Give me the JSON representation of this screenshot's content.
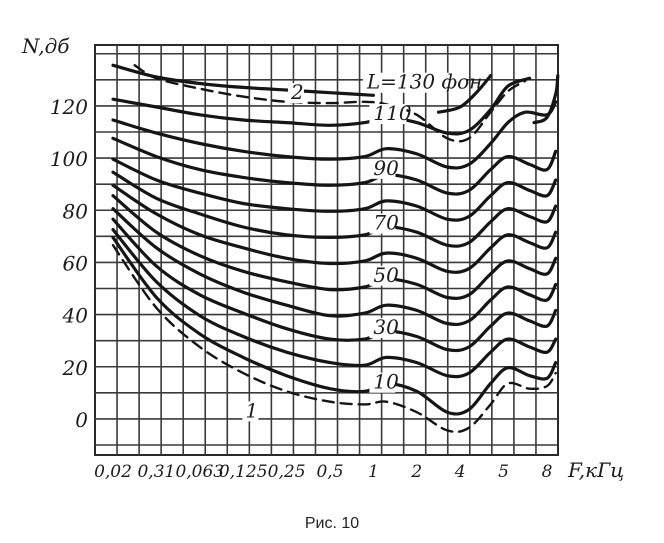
{
  "chart_data": {
    "type": "line",
    "ylabel": "N,дб",
    "xlabel": "F,кГц",
    "x_ticks": [
      "0,02",
      "0,31",
      "0,063",
      "0,125",
      "0,25",
      "0,5",
      "1",
      "2",
      "4",
      "5",
      "8"
    ],
    "y_ticks": [
      "0",
      "20",
      "40",
      "60",
      "80",
      "100",
      "120"
    ],
    "ylim": [
      -10,
      140
    ],
    "grid": true,
    "x_index_range": [
      0,
      10
    ],
    "series": [
      {
        "label": "L=130 фон",
        "points": [
          [
            0,
            136
          ],
          [
            1,
            131.5
          ],
          [
            2,
            129
          ],
          [
            3,
            127.5
          ],
          [
            4,
            126.5
          ],
          [
            5,
            125.5
          ],
          [
            6,
            124.5
          ]
        ]
      },
      {
        "label": "110",
        "points": [
          [
            0,
            123
          ],
          [
            1,
            120
          ],
          [
            2,
            117
          ],
          [
            3,
            115
          ],
          [
            4,
            114
          ],
          [
            5,
            113
          ],
          [
            5.8,
            114
          ],
          [
            6.3,
            116
          ],
          [
            7,
            114
          ],
          [
            7.7,
            110
          ],
          [
            8.2,
            111
          ],
          [
            8.7,
            119
          ],
          [
            9.1,
            128
          ],
          [
            9.6,
            131
          ]
        ]
      },
      {
        "points": [
          [
            0,
            115
          ],
          [
            1,
            110
          ],
          [
            2,
            106
          ],
          [
            3,
            103
          ],
          [
            4,
            101
          ],
          [
            5,
            100
          ],
          [
            5.8,
            101
          ],
          [
            6.3,
            104
          ],
          [
            7,
            102
          ],
          [
            7.7,
            97
          ],
          [
            8.2,
            98
          ],
          [
            8.7,
            106
          ],
          [
            9.1,
            114
          ],
          [
            9.5,
            118
          ],
          [
            10,
            117
          ],
          [
            10.2,
            122
          ]
        ]
      },
      {
        "label": "90",
        "points": [
          [
            0,
            108
          ],
          [
            1,
            101
          ],
          [
            2,
            96
          ],
          [
            3,
            93
          ],
          [
            4,
            91
          ],
          [
            5,
            90
          ],
          [
            5.8,
            91
          ],
          [
            6.3,
            94
          ],
          [
            7,
            92
          ],
          [
            7.7,
            87
          ],
          [
            8.2,
            88
          ],
          [
            8.7,
            96
          ],
          [
            9.1,
            101
          ],
          [
            9.6,
            98
          ],
          [
            10,
            96
          ],
          [
            10.2,
            103
          ]
        ]
      },
      {
        "points": [
          [
            0,
            100
          ],
          [
            1,
            92
          ],
          [
            2,
            87
          ],
          [
            3,
            83
          ],
          [
            4,
            81
          ],
          [
            5,
            80
          ],
          [
            5.8,
            81
          ],
          [
            6.3,
            84
          ],
          [
            7,
            82
          ],
          [
            7.7,
            77
          ],
          [
            8.2,
            78
          ],
          [
            8.7,
            86
          ],
          [
            9.1,
            91
          ],
          [
            9.6,
            88
          ],
          [
            10,
            86
          ],
          [
            10.2,
            92
          ]
        ]
      },
      {
        "label": "70",
        "points": [
          [
            0,
            95
          ],
          [
            1,
            85
          ],
          [
            2,
            79
          ],
          [
            3,
            74
          ],
          [
            4,
            71
          ],
          [
            5,
            70
          ],
          [
            5.8,
            71
          ],
          [
            6.3,
            74
          ],
          [
            7,
            72
          ],
          [
            7.7,
            67
          ],
          [
            8.2,
            68
          ],
          [
            8.7,
            76
          ],
          [
            9.1,
            81
          ],
          [
            9.6,
            78
          ],
          [
            10,
            76
          ],
          [
            10.2,
            82
          ]
        ]
      },
      {
        "points": [
          [
            0,
            90
          ],
          [
            1,
            79
          ],
          [
            2,
            71
          ],
          [
            3,
            66
          ],
          [
            4,
            62
          ],
          [
            5,
            60
          ],
          [
            5.8,
            61
          ],
          [
            6.3,
            64
          ],
          [
            7,
            62
          ],
          [
            7.7,
            57
          ],
          [
            8.2,
            58
          ],
          [
            8.7,
            66
          ],
          [
            9.1,
            71
          ],
          [
            9.6,
            68
          ],
          [
            10,
            66
          ],
          [
            10.2,
            72
          ]
        ]
      },
      {
        "label": "50",
        "points": [
          [
            0,
            86
          ],
          [
            1,
            72
          ],
          [
            2,
            63
          ],
          [
            3,
            57
          ],
          [
            4,
            53
          ],
          [
            5,
            50
          ],
          [
            5.8,
            51
          ],
          [
            6.3,
            54
          ],
          [
            7,
            52
          ],
          [
            7.7,
            47
          ],
          [
            8.2,
            48
          ],
          [
            8.7,
            56
          ],
          [
            9.1,
            61
          ],
          [
            9.6,
            58
          ],
          [
            10,
            56
          ],
          [
            10.2,
            62
          ]
        ]
      },
      {
        "points": [
          [
            0,
            81
          ],
          [
            1,
            66
          ],
          [
            2,
            56
          ],
          [
            3,
            49
          ],
          [
            4,
            44
          ],
          [
            5,
            40
          ],
          [
            5.8,
            41
          ],
          [
            6.3,
            44
          ],
          [
            7,
            42
          ],
          [
            7.7,
            37
          ],
          [
            8.2,
            38
          ],
          [
            8.7,
            46
          ],
          [
            9.1,
            51
          ],
          [
            9.6,
            48
          ],
          [
            10,
            46
          ],
          [
            10.2,
            52
          ]
        ]
      },
      {
        "label": "30",
        "points": [
          [
            0,
            77
          ],
          [
            1,
            59
          ],
          [
            2,
            48
          ],
          [
            3,
            41
          ],
          [
            4,
            35
          ],
          [
            5,
            31
          ],
          [
            5.8,
            31
          ],
          [
            6.3,
            34
          ],
          [
            7,
            32
          ],
          [
            7.7,
            27
          ],
          [
            8.2,
            28
          ],
          [
            8.7,
            36
          ],
          [
            9.1,
            41
          ],
          [
            9.6,
            38
          ],
          [
            10,
            36
          ],
          [
            10.2,
            42
          ]
        ]
      },
      {
        "points": [
          [
            0,
            73
          ],
          [
            1,
            53
          ],
          [
            2,
            40
          ],
          [
            3,
            32
          ],
          [
            4,
            26
          ],
          [
            5,
            22
          ],
          [
            5.8,
            21
          ],
          [
            6.3,
            24
          ],
          [
            7,
            22
          ],
          [
            7.7,
            17
          ],
          [
            8.2,
            18
          ],
          [
            8.7,
            26
          ],
          [
            9.1,
            31
          ],
          [
            9.6,
            28
          ],
          [
            10,
            26
          ],
          [
            10.2,
            31
          ]
        ]
      },
      {
        "label": "10",
        "points": [
          [
            0,
            70
          ],
          [
            1,
            47
          ],
          [
            2,
            33
          ],
          [
            3,
            24
          ],
          [
            4,
            17
          ],
          [
            5,
            12
          ],
          [
            5.8,
            11
          ],
          [
            6.3,
            14
          ],
          [
            7,
            11
          ],
          [
            7.7,
            3
          ],
          [
            8.2,
            4
          ],
          [
            8.7,
            14
          ],
          [
            9.1,
            20
          ],
          [
            9.6,
            17
          ],
          [
            10,
            16
          ],
          [
            10.2,
            22
          ]
        ]
      }
    ],
    "dashed_curves": [
      {
        "label": "1",
        "points": [
          [
            0,
            67
          ],
          [
            1,
            43
          ],
          [
            2,
            28
          ],
          [
            3,
            18
          ],
          [
            4,
            11
          ],
          [
            5,
            7
          ],
          [
            5.8,
            6
          ],
          [
            6.3,
            7
          ],
          [
            7,
            3
          ],
          [
            7.7,
            -4
          ],
          [
            8.2,
            -3
          ],
          [
            8.7,
            6
          ],
          [
            9.1,
            14
          ],
          [
            9.6,
            12
          ],
          [
            10,
            13
          ],
          [
            10.2,
            18
          ]
        ]
      },
      {
        "label": "2",
        "points": [
          [
            0.5,
            136
          ],
          [
            1,
            131
          ],
          [
            2,
            127
          ],
          [
            3,
            124
          ],
          [
            4,
            122
          ],
          [
            5,
            121.5
          ],
          [
            5.8,
            122
          ],
          [
            6.3,
            121
          ],
          [
            7,
            117
          ],
          [
            7.7,
            108
          ],
          [
            8.2,
            108
          ],
          [
            8.7,
            118
          ],
          [
            9.1,
            126
          ],
          [
            9.5,
            130
          ]
        ]
      }
    ],
    "extra_strokes": [
      {
        "points": [
          [
            7.5,
            118
          ],
          [
            8.0,
            120
          ],
          [
            8.4,
            126
          ],
          [
            8.7,
            132
          ]
        ]
      },
      {
        "points": [
          [
            9.7,
            114
          ],
          [
            10.0,
            116
          ],
          [
            10.2,
            125
          ],
          [
            10.25,
            132
          ]
        ]
      }
    ],
    "caption": "Рис. 10"
  }
}
